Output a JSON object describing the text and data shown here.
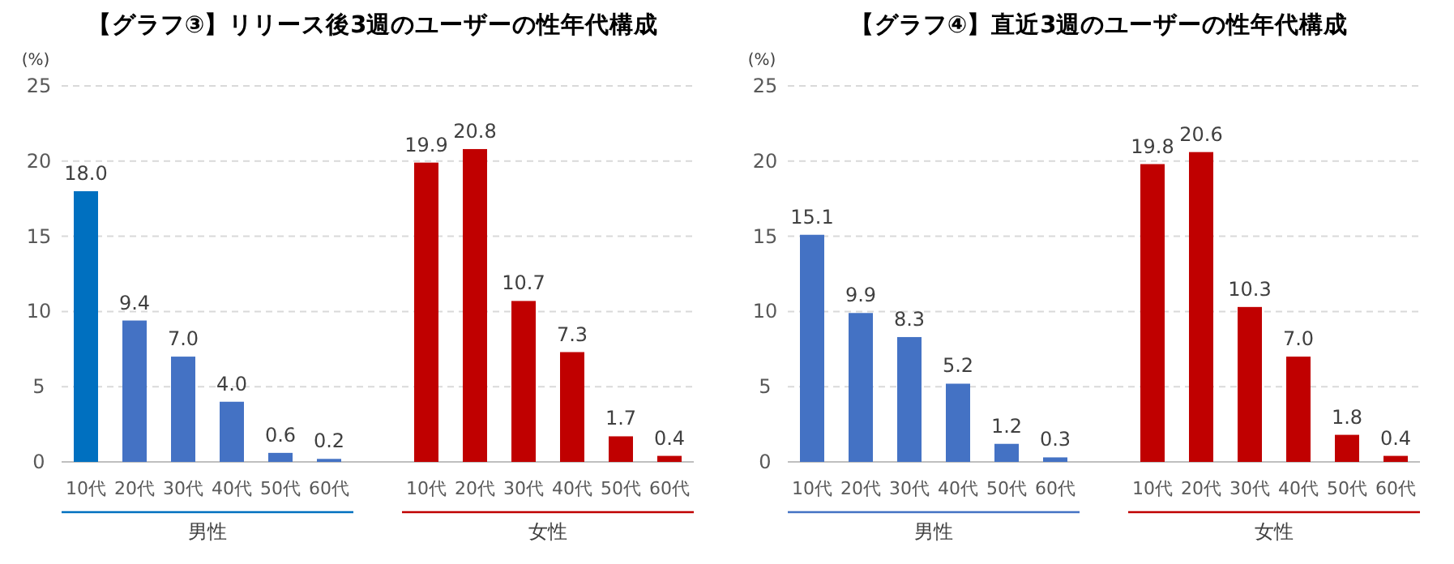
{
  "chart_data": [
    {
      "type": "bar",
      "title": "【グラフ③】リリース後3週のユーザーの性年代構成",
      "ylabel": "(%)",
      "categories": [
        "10代",
        "20代",
        "30代",
        "40代",
        "50代",
        "60代",
        null,
        "10代",
        "20代",
        "30代",
        "40代",
        "50代",
        "60代"
      ],
      "values": [
        18.0,
        9.4,
        7.0,
        4.0,
        0.6,
        0.2,
        null,
        19.9,
        20.8,
        10.7,
        7.3,
        1.7,
        0.4
      ],
      "colors": [
        "#0070c0",
        "#4472c4",
        "#4472c4",
        "#4472c4",
        "#4472c4",
        "#4472c4",
        null,
        "#c00000",
        "#c00000",
        "#c00000",
        "#c00000",
        "#c00000",
        "#c00000"
      ],
      "value_labels": [
        "18.0",
        "9.4",
        "7.0",
        "4.0",
        "0.6",
        "0.2",
        null,
        "19.9",
        "20.8",
        "10.7",
        "7.3",
        "1.7",
        "0.4"
      ],
      "ylim": [
        0,
        25
      ],
      "yticks": [
        0,
        5,
        10,
        15,
        20,
        25
      ],
      "grid": "y",
      "annotations": [
        "男性",
        "女性"
      ]
    },
    {
      "type": "bar",
      "title": "【グラフ④】直近3週のユーザーの性年代構成",
      "ylabel": "(%)",
      "categories": [
        "10代",
        "20代",
        "30代",
        "40代",
        "50代",
        "60代",
        null,
        "10代",
        "20代",
        "30代",
        "40代",
        "50代",
        "60代"
      ],
      "values": [
        15.1,
        9.9,
        8.3,
        5.2,
        1.2,
        0.3,
        null,
        19.8,
        20.6,
        10.3,
        7.0,
        1.8,
        0.4
      ],
      "colors": [
        "#4472c4",
        "#4472c4",
        "#4472c4",
        "#4472c4",
        "#4472c4",
        "#4472c4",
        null,
        "#c00000",
        "#c00000",
        "#c00000",
        "#c00000",
        "#c00000",
        "#c00000"
      ],
      "value_labels": [
        "15.1",
        "9.9",
        "8.3",
        "5.2",
        "1.2",
        "0.3",
        null,
        "19.8",
        "20.6",
        "10.3",
        "7.0",
        "1.8",
        "0.4"
      ],
      "ylim": [
        0,
        25
      ],
      "yticks": [
        0,
        5,
        10,
        15,
        20,
        25
      ],
      "grid": "y",
      "annotations": [
        "男性",
        "女性"
      ]
    }
  ]
}
